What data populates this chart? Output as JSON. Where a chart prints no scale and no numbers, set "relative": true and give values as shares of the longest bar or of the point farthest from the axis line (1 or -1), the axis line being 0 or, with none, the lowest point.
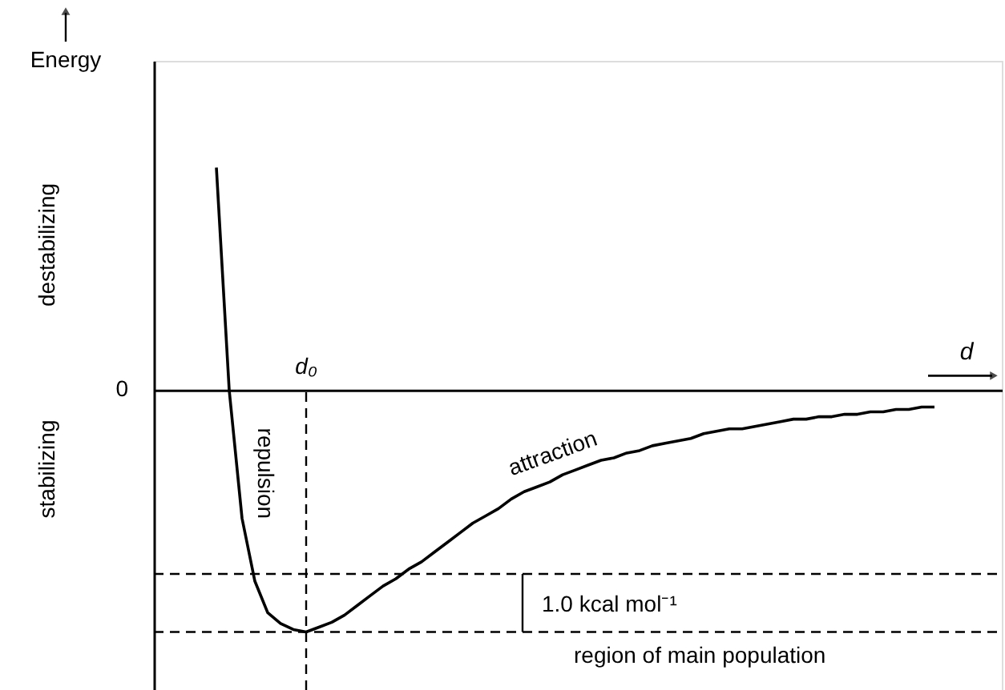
{
  "chart_data": {
    "type": "line",
    "relative": true,
    "xlabel": "d",
    "marker": "none",
    "line_style": "solid",
    "annotations": [
      "Energy",
      "destabilizing",
      "stabilizing",
      "0",
      "repulsion",
      "attraction",
      "1.0 kcal mol⁻¹",
      "region of main population",
      "d₀"
    ],
    "categories": [
      null,
      null,
      null,
      null,
      null,
      null,
      null,
      null,
      null,
      null,
      null,
      null,
      null,
      null,
      null,
      null,
      null,
      null,
      null,
      null,
      null,
      null,
      null,
      null,
      null,
      null,
      null,
      null,
      null,
      null,
      null,
      null,
      null,
      null,
      null,
      null,
      null,
      null,
      null,
      null,
      null,
      null,
      null,
      null,
      null,
      null,
      null,
      null,
      null,
      null,
      null,
      null,
      null,
      null,
      null,
      null,
      null
    ],
    "series": [
      {
        "color": "#000000",
        "values": [
          0.92,
          0.0,
          -0.53,
          -0.79,
          -0.92,
          -0.965,
          -0.99,
          -1.0,
          -0.98,
          -0.96,
          -0.93,
          -0.89,
          -0.85,
          -0.81,
          -0.78,
          -0.74,
          -0.71,
          -0.67,
          -0.63,
          -0.59,
          -0.55,
          -0.52,
          -0.49,
          -0.45,
          -0.42,
          -0.4,
          -0.38,
          -0.35,
          -0.33,
          -0.31,
          -0.29,
          -0.28,
          -0.26,
          -0.25,
          -0.23,
          -0.22,
          -0.21,
          -0.2,
          -0.18,
          -0.17,
          -0.16,
          -0.16,
          -0.15,
          -0.14,
          -0.13,
          -0.12,
          -0.12,
          -0.11,
          -0.11,
          -0.1,
          -0.1,
          -0.09,
          -0.09,
          -0.08,
          -0.08,
          -0.07,
          -0.07
        ]
      }
    ],
    "ref_lines": [
      {
        "axis": "y",
        "value": -0.76,
        "line_style": "dashed"
      },
      {
        "axis": "y",
        "value": -1,
        "line_style": "dashed"
      }
    ]
  }
}
